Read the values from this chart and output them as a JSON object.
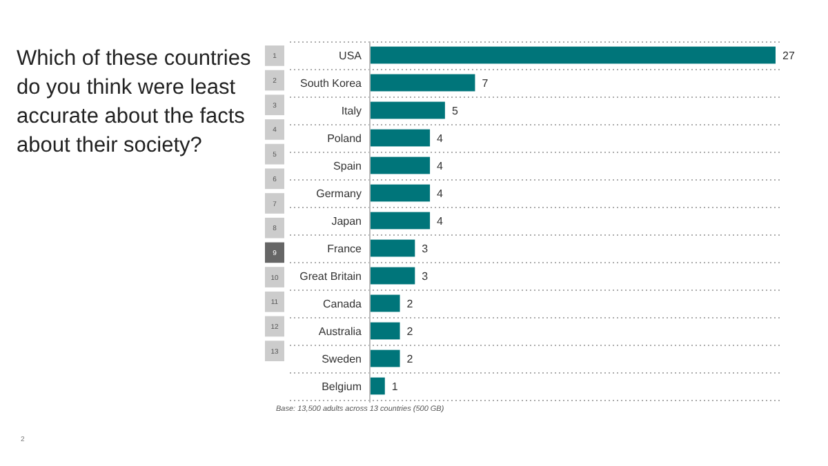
{
  "chart_data": {
    "type": "bar",
    "orientation": "horizontal",
    "title": "Which of these countries do you think were least accurate about the facts about their society?",
    "categories": [
      "USA",
      "South Korea",
      "Italy",
      "Poland",
      "Spain",
      "Germany",
      "Japan",
      "France",
      "Great Britain",
      "Canada",
      "Australia",
      "Sweden",
      "Belgium"
    ],
    "values": [
      27,
      7,
      5,
      4,
      4,
      4,
      4,
      3,
      3,
      2,
      2,
      2,
      1
    ],
    "color": "#00757a",
    "data_labels": true,
    "grid": "y",
    "annotations": [
      "Base: 13,500 adults across 13 countries (500 GB)",
      "2",
      "1",
      "2",
      "3",
      "4",
      "5",
      "6",
      "7",
      "8",
      "9",
      "10",
      "11",
      "12",
      "13"
    ]
  }
}
